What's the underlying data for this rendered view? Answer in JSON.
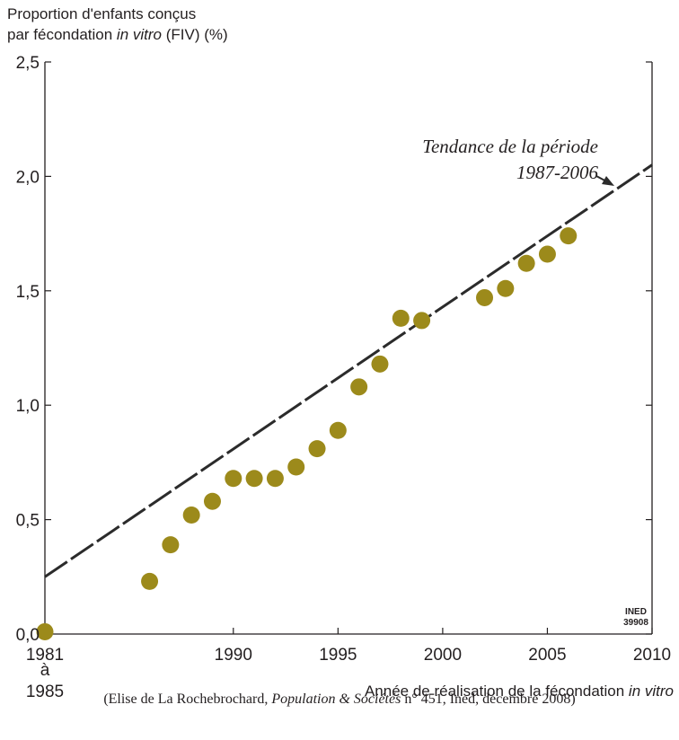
{
  "chart_data": {
    "type": "scatter",
    "ylabel_line1": "Proportion d'enfants conçus",
    "ylabel_line2_pre": "par fécondation ",
    "ylabel_line2_em": "in vitro",
    "ylabel_line2_post": " (FIV) (%)",
    "xlabel_pre": "Année de réalisation de la fécondation ",
    "xlabel_em": "in vitro",
    "ylim": [
      0,
      2.5
    ],
    "xlim": [
      1981,
      2010
    ],
    "yticks": [
      {
        "value": 0,
        "label": "0,0"
      },
      {
        "value": 0.5,
        "label": "0,5"
      },
      {
        "value": 1.0,
        "label": "1,0"
      },
      {
        "value": 1.5,
        "label": "1,5"
      },
      {
        "value": 2.0,
        "label": "2,0"
      },
      {
        "value": 2.5,
        "label": "2,5"
      }
    ],
    "xticks": [
      {
        "value": 1981,
        "label": "1981"
      },
      {
        "value": 1990,
        "label": "1990"
      },
      {
        "value": 1995,
        "label": "1995"
      },
      {
        "value": 2000,
        "label": "2000"
      },
      {
        "value": 2005,
        "label": "2005"
      },
      {
        "value": 2010,
        "label": "2010"
      }
    ],
    "first_tick_extra": [
      "à",
      "1985"
    ],
    "points": [
      {
        "x": "1981 à 1985",
        "y": 0.01
      },
      {
        "x": 1986,
        "y": 0.23
      },
      {
        "x": 1987,
        "y": 0.39
      },
      {
        "x": 1988,
        "y": 0.52
      },
      {
        "x": 1989,
        "y": 0.58
      },
      {
        "x": 1990,
        "y": 0.68
      },
      {
        "x": 1991,
        "y": 0.68
      },
      {
        "x": 1992,
        "y": 0.68
      },
      {
        "x": 1993,
        "y": 0.73
      },
      {
        "x": 1994,
        "y": 0.81
      },
      {
        "x": 1995,
        "y": 0.89
      },
      {
        "x": 1996,
        "y": 1.08
      },
      {
        "x": 1997,
        "y": 1.18
      },
      {
        "x": 1998,
        "y": 1.38
      },
      {
        "x": 1999,
        "y": 1.37
      },
      {
        "x": 2002,
        "y": 1.47
      },
      {
        "x": 2003,
        "y": 1.51
      },
      {
        "x": 2004,
        "y": 1.62
      },
      {
        "x": 2005,
        "y": 1.66
      },
      {
        "x": 2006,
        "y": 1.74
      }
    ],
    "trend": {
      "label_line1": "Tendance de la période",
      "label_line2": "1987-2006",
      "x": [
        1981,
        2010
      ],
      "y": [
        0.25,
        2.05
      ]
    },
    "stamp": [
      "INED",
      "39908"
    ],
    "grid": false
  },
  "source": {
    "pre": "(Elise de La Rochebrochard, ",
    "em": "Population & Sociétés",
    "post": " n° 451, Ined, décembre 2008)"
  },
  "colors": {
    "point": "#9c8a1b",
    "line": "#2b2b2b",
    "axis": "#231f20"
  }
}
